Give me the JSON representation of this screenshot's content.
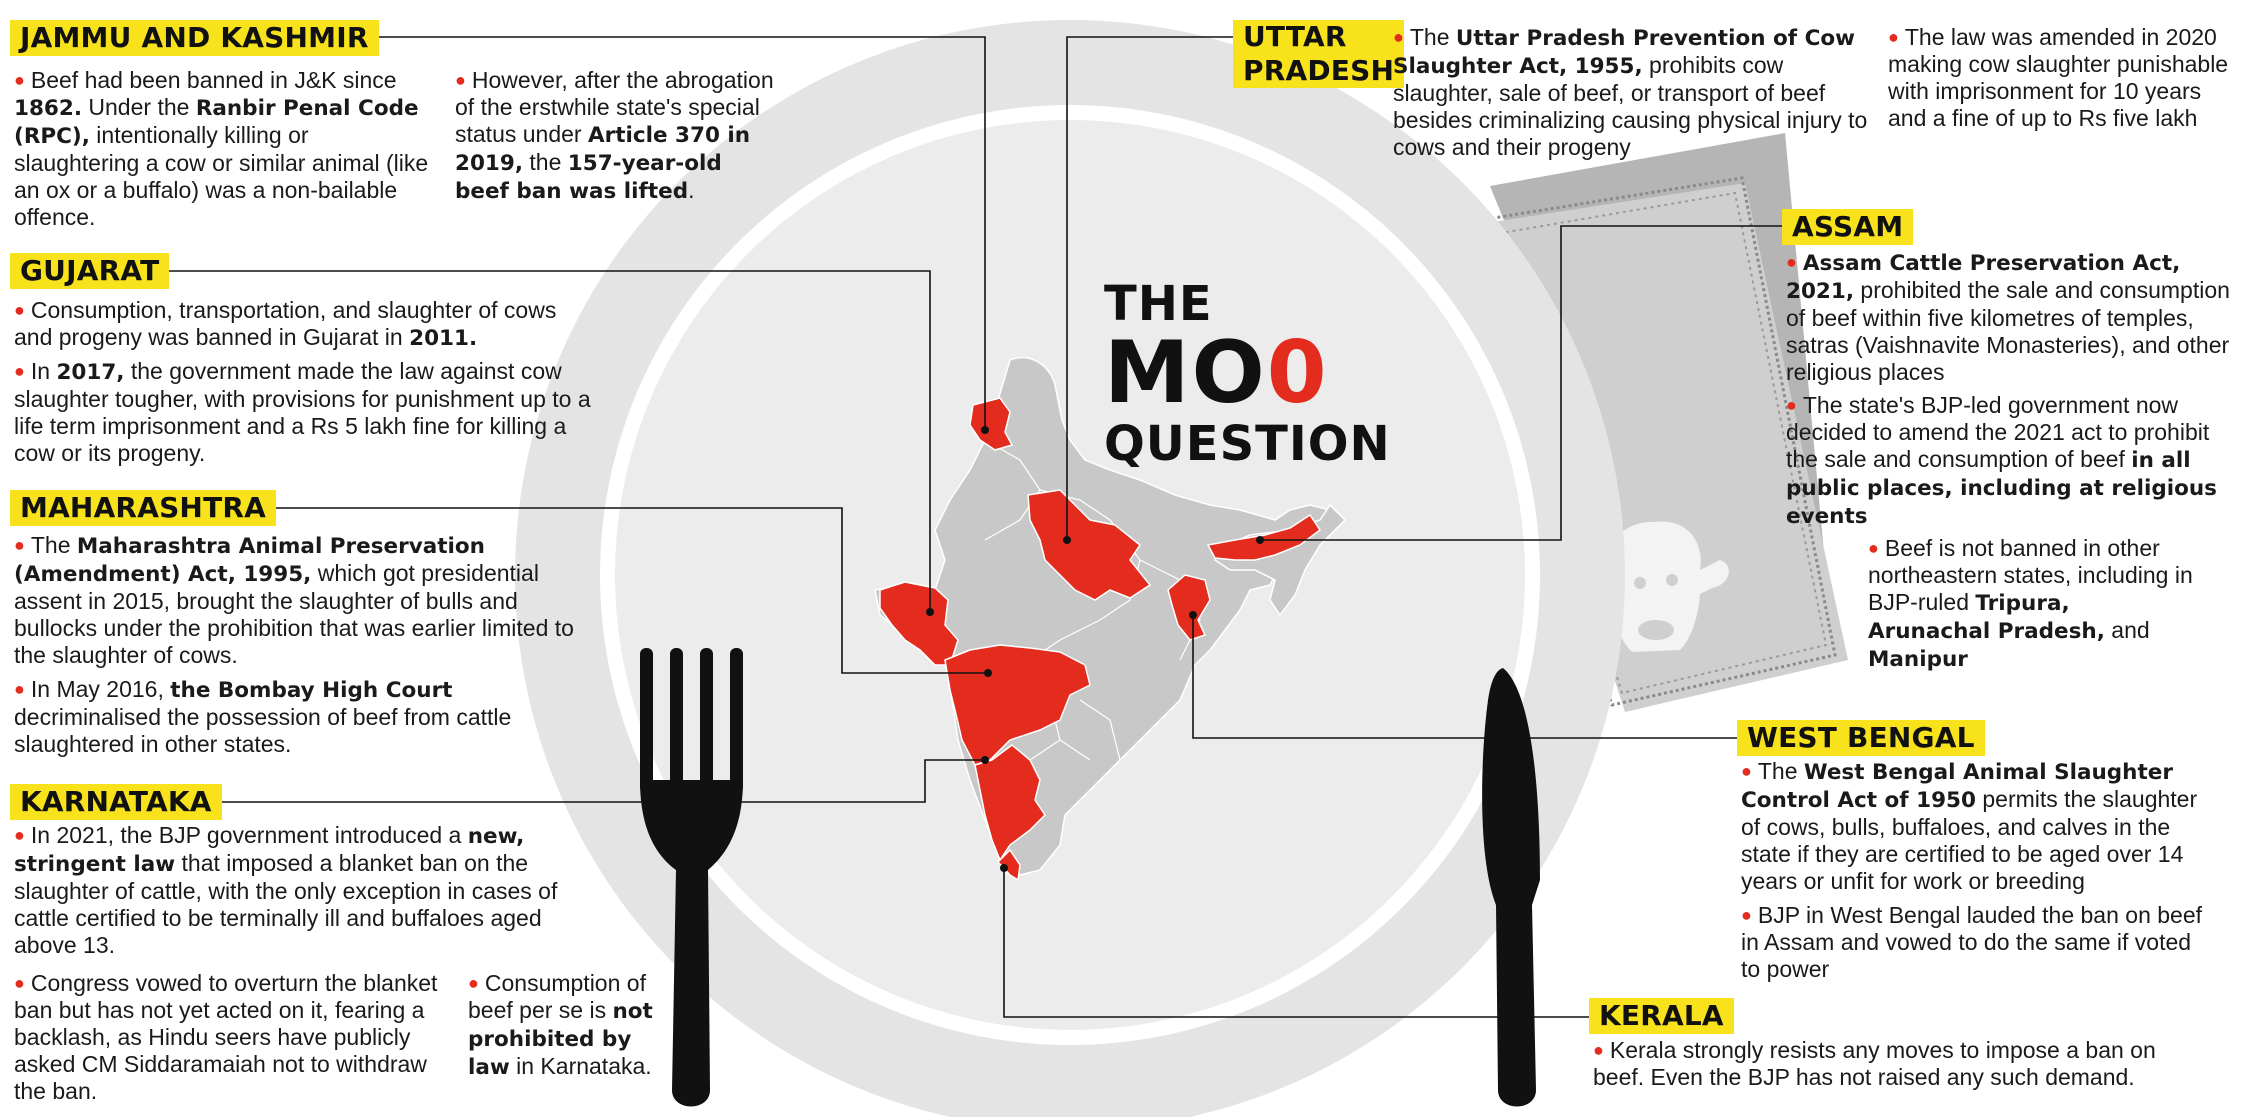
{
  "title": {
    "line1": "THE",
    "line2a": "MO",
    "line2b": "0",
    "line3": "QUESTION"
  },
  "colors": {
    "highlight": "#f7e21b",
    "ban_state": "#e32c1e",
    "map_other": "#c8c8c8",
    "plate": "#e6e6e6"
  },
  "icons": [
    "plate-graphic",
    "fork-icon",
    "knife-icon",
    "napkin-graphic",
    "cow-head-icon",
    "india-map"
  ],
  "states": {
    "jk": {
      "name": "JAMMU AND KASHMIR",
      "b1": {
        "t1": "Beef had been banned in J&K since ",
        "k1": "1862.",
        "t2": " Under the ",
        "k2": "Ranbir Penal Code (RPC),",
        "t3": " intentionally killing or slaughtering a cow or similar animal (like an ox or a buffalo) was a non-bailable offence."
      },
      "b2": {
        "t1": "However, after the abrogation of the erstwhile state's special status under ",
        "k1": "Article 370 in 2019,",
        "t2": " the ",
        "k2": "157-year-old beef ban was lifted",
        "t3": "."
      }
    },
    "guj": {
      "name": "GUJARAT",
      "b1": {
        "t1": "Consumption, transportation, and slaughter of cows and progeny was banned in Gujarat in ",
        "k1": "2011."
      },
      "b2": {
        "t1": "In ",
        "k1": "2017,",
        "t2": " the government made the law against cow slaughter tougher, with provisions for punishment up to a life term imprisonment and a Rs 5 lakh fine for killing a cow or its progeny."
      }
    },
    "mh": {
      "name": "MAHARASHTRA",
      "b1": {
        "t1": "The ",
        "k1": "Maharashtra Animal Preservation (Amendment) Act, 1995,",
        "t2": " which got presidential assent in 2015, brought the slaughter of bulls and bullocks under the prohibition that was earlier limited to the slaughter of cows."
      },
      "b2": {
        "t1": "In May 2016, ",
        "k1": "the Bombay High Court",
        "t2": " decriminalised the possession of beef from cattle slaughtered in other states."
      }
    },
    "ka": {
      "name": "KARNATAKA",
      "b1": {
        "t1": "In 2021, the BJP government introduced a ",
        "k1": "new, stringent law",
        "t2": " that imposed a blanket ban on the slaughter of cattle, with the only exception in cases of cattle certified to be terminally ill and buffaloes aged above 13."
      },
      "b2": {
        "t1": "Congress vowed to overturn the blanket ban but has not yet acted on it, fearing a backlash, as Hindu seers have publicly asked CM Siddaramaiah not to withdraw the ban."
      },
      "b3": {
        "t1": "Consumption of beef per se is ",
        "k1": "not prohibited by law",
        "t2": " in Karnataka."
      }
    },
    "up": {
      "name1": "UTTAR",
      "name2": "PRADESH",
      "b1": {
        "t1": "The ",
        "k1": "Uttar Pradesh Prevention of Cow Slaughter Act, 1955,",
        "t2": " prohibits cow slaughter, sale of beef, or transport of beef besides criminalizing causing physical injury to cows and their progeny"
      },
      "b2": {
        "t1": "The law was amended in 2020 making cow slaughter punishable with imprisonment for 10 years and a fine of up to Rs five lakh"
      }
    },
    "as": {
      "name": "ASSAM",
      "b1": {
        "k1": "Assam Cattle Preservation Act, 2021,",
        "t1": " prohibited the sale and consumption of beef within five kilometres of temples, satras (Vaishnavite Monasteries), and other religious places"
      },
      "b2": {
        "t1": "The state's BJP-led government now decided to amend the 2021 act to prohibit the sale and consumption of beef ",
        "k1": "in all public places, including at religious events"
      },
      "b3": {
        "t1": "Beef is not banned in other northeastern states, including in BJP-ruled ",
        "k1": "Tripura, Arunachal Pradesh,",
        "t2": " and ",
        "k2": "Manipur"
      }
    },
    "wb": {
      "name": "WEST BENGAL",
      "b1": {
        "t1": "The ",
        "k1": "West Bengal Animal Slaughter Control Act of 1950",
        "t2": " permits the slaughter of cows, bulls, buffaloes, and calves in the state if they are certified to be aged over 14 years or unfit for work or breeding"
      },
      "b2": {
        "t1": "BJP in West Bengal lauded the ban on beef in Assam and vowed to do the same if voted to power"
      }
    },
    "kl": {
      "name": "KERALA",
      "b1": {
        "t1": "Kerala strongly resists any moves to impose a ban on beef. Even the BJP has not raised any such demand."
      }
    }
  }
}
